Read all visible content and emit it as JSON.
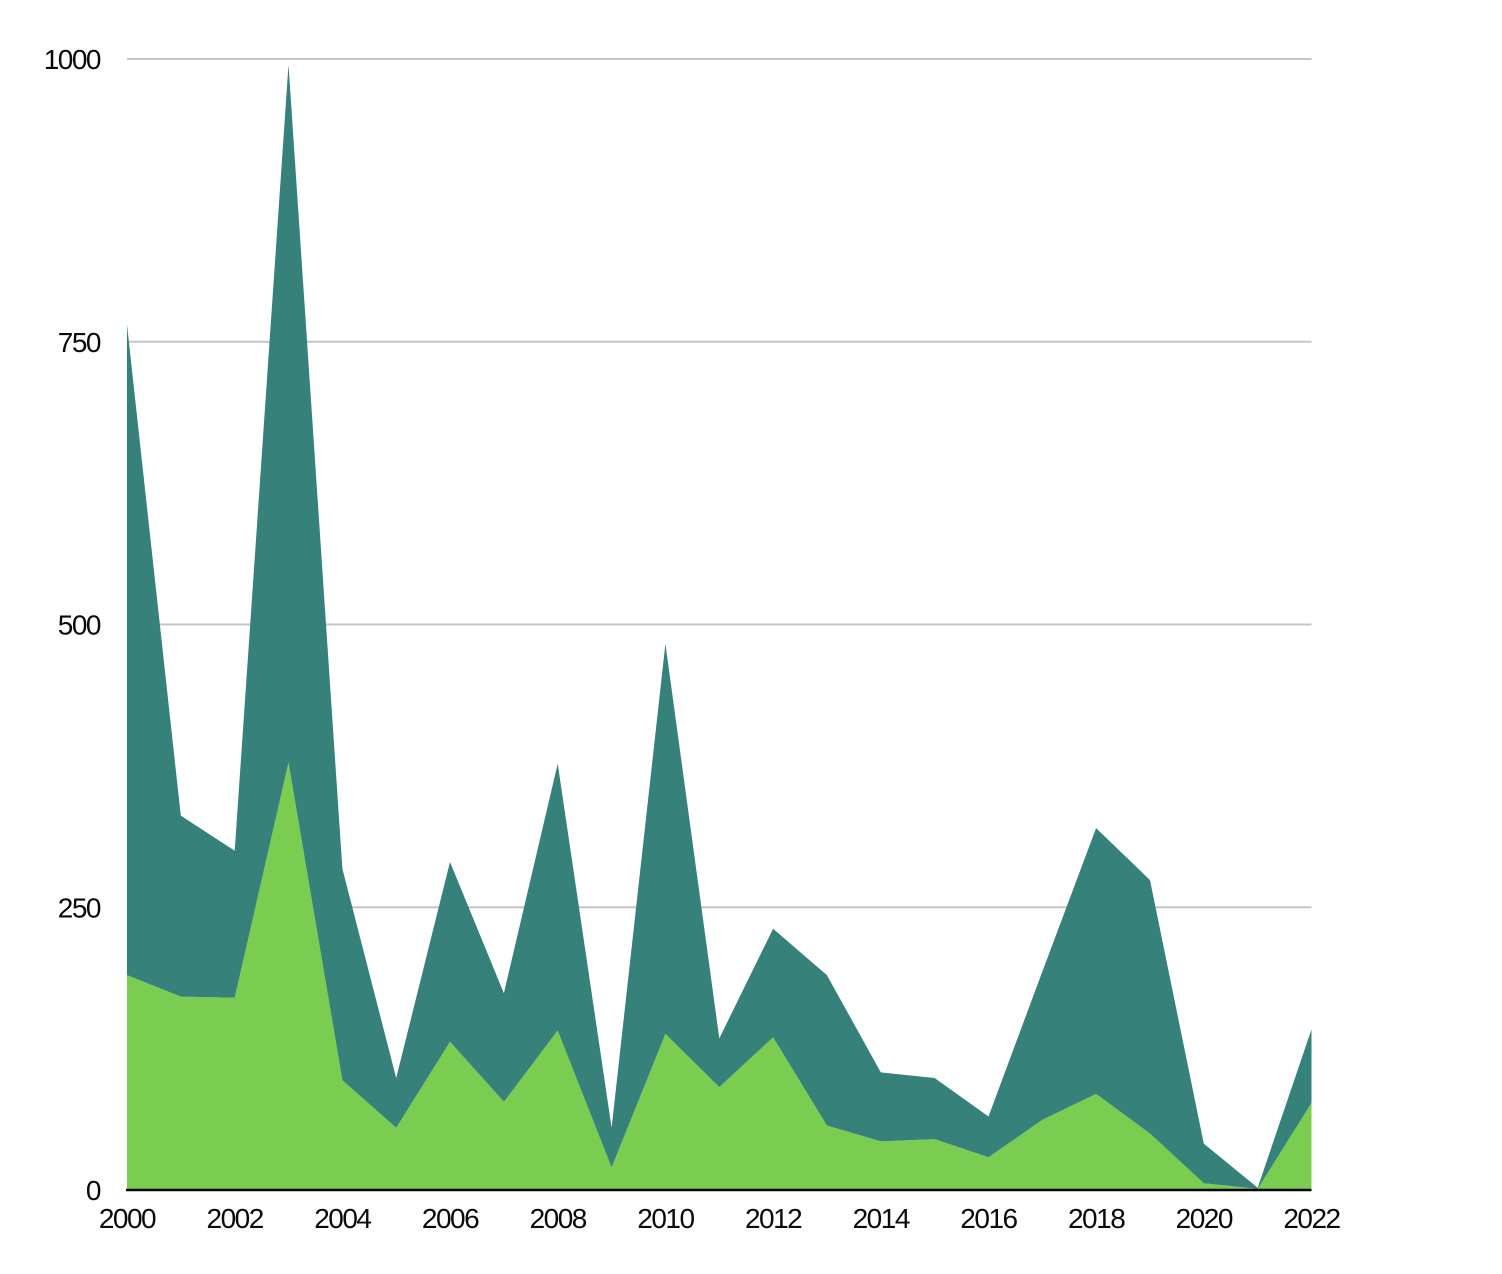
{
  "chart_data": {
    "type": "area",
    "stacked": true,
    "title": "",
    "xlabel": "",
    "ylabel": "",
    "x": [
      2000,
      2001,
      2002,
      2003,
      2004,
      2005,
      2006,
      2007,
      2008,
      2009,
      2010,
      2011,
      2012,
      2013,
      2014,
      2015,
      2016,
      2017,
      2018,
      2019,
      2020,
      2021,
      2022
    ],
    "series": [
      {
        "name": "bottom_green_series",
        "color": "#7BCD51",
        "values": [
          190,
          171,
          170,
          378,
          97,
          55,
          131,
          78,
          141,
          20,
          138,
          91,
          135,
          57,
          43,
          45,
          29,
          62,
          85,
          50,
          6,
          1,
          77
        ]
      },
      {
        "name": "top_teal_series",
        "color": "#36827B",
        "values": [
          575,
          160,
          130,
          617,
          187,
          44,
          159,
          96,
          236,
          35,
          345,
          43,
          96,
          133,
          61,
          54,
          36,
          131,
          235,
          224,
          35,
          1,
          65
        ]
      }
    ],
    "stacked_totals": [
      765,
      331,
      300,
      995,
      284,
      99,
      290,
      174,
      377,
      55,
      483,
      134,
      231,
      190,
      104,
      99,
      65,
      193,
      320,
      274,
      41,
      2,
      142
    ],
    "ylim": [
      0,
      1000
    ],
    "yticks": [
      0,
      250,
      500,
      750,
      1000
    ],
    "y_tick_labels": [
      "0",
      "250",
      "500",
      "750",
      "1000"
    ],
    "xticks": [
      2000,
      2002,
      2004,
      2006,
      2008,
      2010,
      2012,
      2014,
      2016,
      2018,
      2020,
      2022
    ],
    "x_tick_labels": [
      "2000",
      "2002",
      "2004",
      "2006",
      "2008",
      "2010",
      "2012",
      "2014",
      "2016",
      "2018",
      "2020",
      "2022"
    ],
    "grid": "horizontal",
    "legend": "none",
    "colors": {
      "series_bottom": "#7BCD51",
      "series_top": "#36827B",
      "gridline": "#C6C6C6",
      "axis_line": "#000000",
      "tick_text": "#0A0A0A",
      "background": "#FFFFFF"
    }
  }
}
